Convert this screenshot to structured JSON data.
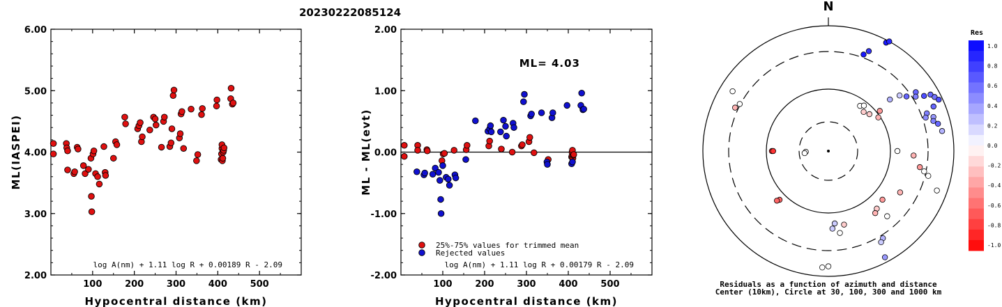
{
  "title": "20230222085124",
  "chart_data": [
    {
      "type": "scatter",
      "xlabel": "Hypocentral distance (km)",
      "ylabel": "ML(IASPEI)",
      "xlim": [
        0,
        600
      ],
      "ylim": [
        2.0,
        6.0
      ],
      "xticks": [
        "100",
        "200",
        "300",
        "400",
        "500"
      ],
      "yticks": [
        "2.00",
        "3.00",
        "4.00",
        "5.00",
        "6.00"
      ],
      "formula": "log A(nm) + 1.11 log R + 0.00189 R - 2.09",
      "points": [
        [
          6,
          4.14
        ],
        [
          6,
          3.97
        ],
        [
          37,
          4.14
        ],
        [
          38,
          4.07
        ],
        [
          40,
          4.02
        ],
        [
          40,
          3.71
        ],
        [
          55,
          3.65
        ],
        [
          57,
          3.68
        ],
        [
          63,
          4.08
        ],
        [
          65,
          4.05
        ],
        [
          78,
          3.78
        ],
        [
          82,
          3.65
        ],
        [
          90,
          3.72
        ],
        [
          96,
          3.9
        ],
        [
          97,
          3.28
        ],
        [
          98,
          3.03
        ],
        [
          101,
          3.97
        ],
        [
          103,
          4.02
        ],
        [
          107,
          3.65
        ],
        [
          112,
          3.6
        ],
        [
          116,
          3.48
        ],
        [
          127,
          4.09
        ],
        [
          130,
          3.67
        ],
        [
          131,
          3.62
        ],
        [
          150,
          3.9
        ],
        [
          155,
          4.17
        ],
        [
          158,
          4.12
        ],
        [
          177,
          4.57
        ],
        [
          179,
          4.46
        ],
        [
          208,
          4.38
        ],
        [
          211,
          4.43
        ],
        [
          214,
          4.48
        ],
        [
          217,
          4.17
        ],
        [
          219,
          4.25
        ],
        [
          237,
          4.36
        ],
        [
          246,
          4.57
        ],
        [
          250,
          4.54
        ],
        [
          252,
          4.44
        ],
        [
          265,
          4.08
        ],
        [
          270,
          4.5
        ],
        [
          272,
          4.57
        ],
        [
          285,
          4.09
        ],
        [
          288,
          4.15
        ],
        [
          290,
          4.38
        ],
        [
          293,
          4.92
        ],
        [
          295,
          5.01
        ],
        [
          308,
          4.23
        ],
        [
          310,
          4.3
        ],
        [
          312,
          4.62
        ],
        [
          314,
          4.66
        ],
        [
          318,
          4.06
        ],
        [
          336,
          4.7
        ],
        [
          349,
          3.86
        ],
        [
          352,
          3.96
        ],
        [
          361,
          4.61
        ],
        [
          363,
          4.71
        ],
        [
          397,
          4.75
        ],
        [
          398,
          4.85
        ],
        [
          408,
          3.88
        ],
        [
          409,
          3.97
        ],
        [
          410,
          4.06
        ],
        [
          410,
          4.12
        ],
        [
          411,
          3.86
        ],
        [
          412,
          3.9
        ],
        [
          413,
          4.0
        ],
        [
          414,
          4.03
        ],
        [
          415,
          4.07
        ],
        [
          431,
          4.87
        ],
        [
          432,
          5.04
        ],
        [
          435,
          4.78
        ],
        [
          437,
          4.8
        ]
      ]
    },
    {
      "type": "scatter",
      "xlabel": "Hypocentral distance (km)",
      "ylabel": "ML - ML(evt)",
      "xlim": [
        0,
        600
      ],
      "ylim": [
        -2.0,
        2.0
      ],
      "xticks": [
        "100",
        "200",
        "300",
        "400",
        "500"
      ],
      "yticks": [
        "-2.00",
        "-1.00",
        "0.00",
        "1.00",
        "2.00"
      ],
      "annotation": "ML= 4.03",
      "legend": [
        {
          "label": "25%-75% values for trimmed mean",
          "color": "#e01010"
        },
        {
          "label": "Rejected values",
          "color": "#1010d0"
        }
      ],
      "formula": "log A(nm) + 1.11 log R + 0.00179 R - 2.09",
      "accepted": [
        [
          8,
          0.11
        ],
        [
          8,
          -0.07
        ],
        [
          40,
          0.11
        ],
        [
          40,
          0.03
        ],
        [
          62,
          0.04
        ],
        [
          63,
          0.02
        ],
        [
          98,
          -0.14
        ],
        [
          101,
          -0.03
        ],
        [
          104,
          -0.02
        ],
        [
          127,
          0.03
        ],
        [
          156,
          0.04
        ],
        [
          158,
          0.11
        ],
        [
          210,
          0.1
        ],
        [
          212,
          0.18
        ],
        [
          240,
          0.05
        ],
        [
          266,
          0.0
        ],
        [
          288,
          0.1
        ],
        [
          290,
          0.12
        ],
        [
          306,
          0.17
        ],
        [
          308,
          0.24
        ],
        [
          318,
          -0.01
        ],
        [
          352,
          -0.12
        ],
        [
          408,
          -0.08
        ],
        [
          409,
          -0.06
        ],
        [
          409,
          0.0
        ],
        [
          410,
          0.03
        ],
        [
          411,
          -0.1
        ],
        [
          412,
          -0.05
        ],
        [
          413,
          -0.04
        ]
      ],
      "rejected": [
        [
          38,
          -0.32
        ],
        [
          55,
          -0.37
        ],
        [
          57,
          -0.34
        ],
        [
          76,
          -0.36
        ],
        [
          82,
          -0.26
        ],
        [
          90,
          -0.33
        ],
        [
          93,
          -0.46
        ],
        [
          95,
          -0.77
        ],
        [
          96,
          -1.0
        ],
        [
          100,
          -0.22
        ],
        [
          108,
          -0.41
        ],
        [
          113,
          -0.44
        ],
        [
          116,
          -0.54
        ],
        [
          129,
          -0.37
        ],
        [
          131,
          -0.42
        ],
        [
          155,
          -0.12
        ],
        [
          178,
          0.51
        ],
        [
          208,
          0.34
        ],
        [
          212,
          0.38
        ],
        [
          214,
          0.43
        ],
        [
          216,
          0.33
        ],
        [
          238,
          0.33
        ],
        [
          245,
          0.52
        ],
        [
          250,
          0.42
        ],
        [
          252,
          0.26
        ],
        [
          268,
          0.47
        ],
        [
          270,
          0.4
        ],
        [
          293,
          0.82
        ],
        [
          295,
          0.94
        ],
        [
          310,
          0.59
        ],
        [
          312,
          0.62
        ],
        [
          336,
          0.64
        ],
        [
          349,
          -0.16
        ],
        [
          350,
          -0.2
        ],
        [
          361,
          0.56
        ],
        [
          363,
          0.64
        ],
        [
          397,
          0.76
        ],
        [
          408,
          -0.19
        ],
        [
          410,
          -0.16
        ],
        [
          430,
          0.76
        ],
        [
          432,
          0.96
        ],
        [
          435,
          0.69
        ],
        [
          437,
          0.7
        ]
      ]
    },
    {
      "type": "scatter",
      "north_label": "N",
      "caption_line1": "Residuals as a function of azimuth and distance",
      "caption_line2": "Center (10km), Circle at 30, 100, 300 and 1000 km",
      "colorbar_title": "Res",
      "colorbar_ticks": [
        "1.0",
        "0.8",
        "0.6",
        "0.4",
        "0.2",
        "0.0",
        "-0.2",
        "-0.4",
        "-0.6",
        "-0.8",
        "-1.0"
      ],
      "stations": [
        [
          -65,
          0.82,
          -0.3
        ],
        [
          -62,
          0.8,
          0.0
        ],
        [
          -58,
          0.9,
          0.0
        ],
        [
          -90,
          0.45,
          -0.8
        ],
        [
          -90,
          0.44,
          -0.8
        ],
        [
          -92,
          0.18,
          0.0
        ],
        [
          -95,
          0.19,
          0.0
        ],
        [
          -135,
          0.55,
          -0.6
        ],
        [
          -134,
          0.57,
          -0.6
        ],
        [
          20,
          0.82,
          0.9
        ],
        [
          22,
          0.86,
          0.8
        ],
        [
          28,
          0.98,
          0.9
        ],
        [
          29,
          1.0,
          0.85
        ],
        [
          50,
          0.64,
          0.3
        ],
        [
          52,
          0.72,
          0.2
        ],
        [
          55,
          0.76,
          0.6
        ],
        [
          56,
          0.84,
          0.6
        ],
        [
          58,
          0.82,
          0.5
        ],
        [
          60,
          0.88,
          0.7
        ],
        [
          61,
          0.93,
          0.6
        ],
        [
          63,
          0.95,
          0.55
        ],
        [
          65,
          0.97,
          0.7
        ],
        [
          67,
          0.91,
          0.6
        ],
        [
          69,
          0.84,
          0.5
        ],
        [
          71,
          0.82,
          0.45
        ],
        [
          72,
          0.88,
          0.4
        ],
        [
          74,
          0.87,
          0.5
        ],
        [
          76,
          0.9,
          0.6
        ],
        [
          80,
          0.92,
          0.3
        ],
        [
          35,
          0.44,
          0.0
        ],
        [
          38,
          0.46,
          0.0
        ],
        [
          42,
          0.42,
          -0.2
        ],
        [
          48,
          0.44,
          -0.2
        ],
        [
          52,
          0.52,
          -0.4
        ],
        [
          56,
          0.48,
          -0.3
        ],
        [
          90,
          0.55,
          0.0
        ],
        [
          93,
          0.68,
          -0.3
        ],
        [
          100,
          0.74,
          -0.4
        ],
        [
          102,
          0.78,
          0.0
        ],
        [
          104,
          0.82,
          0.0
        ],
        [
          110,
          0.92,
          0.0
        ],
        [
          120,
          0.66,
          -0.3
        ],
        [
          132,
          0.58,
          -0.4
        ],
        [
          138,
          0.7,
          0.0
        ],
        [
          140,
          0.6,
          -0.2
        ],
        [
          143,
          0.62,
          -0.3
        ],
        [
          148,
          0.82,
          0.3
        ],
        [
          150,
          0.84,
          0.2
        ],
        [
          152,
          0.96,
          0.4
        ],
        [
          168,
          0.6,
          -0.2
        ],
        [
          172,
          0.66,
          0.0
        ],
        [
          175,
          0.58,
          0.2
        ],
        [
          177,
          0.62,
          0.2
        ],
        [
          180,
          0.92,
          0.0
        ],
        [
          183,
          0.93,
          0.0
        ]
      ]
    }
  ]
}
